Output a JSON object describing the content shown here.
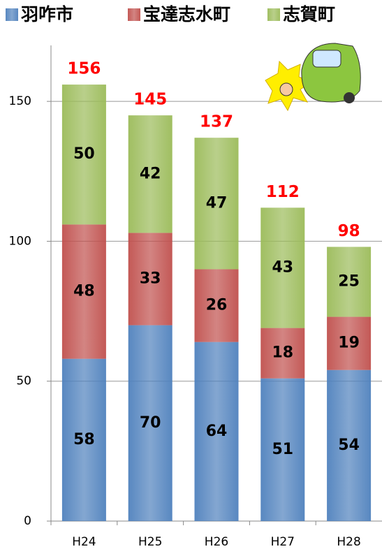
{
  "chart_data": {
    "type": "stacked_bar",
    "categories": [
      "H24",
      "H25",
      "H26",
      "H27",
      "H28"
    ],
    "series": [
      {
        "name": "羽咋市",
        "color": "#4f81bd",
        "values": [
          58,
          70,
          64,
          51,
          54
        ]
      },
      {
        "name": "宝達志水町",
        "color": "#c0504d",
        "values": [
          48,
          33,
          26,
          18,
          19
        ]
      },
      {
        "name": "志賀町",
        "color": "#9bbb59",
        "values": [
          50,
          42,
          47,
          43,
          25
        ]
      }
    ],
    "totals": [
      156,
      145,
      137,
      112,
      98
    ],
    "ylim": [
      0,
      170
    ],
    "yticks": [
      0,
      50,
      100,
      150
    ],
    "grid": true,
    "legend": "top"
  }
}
